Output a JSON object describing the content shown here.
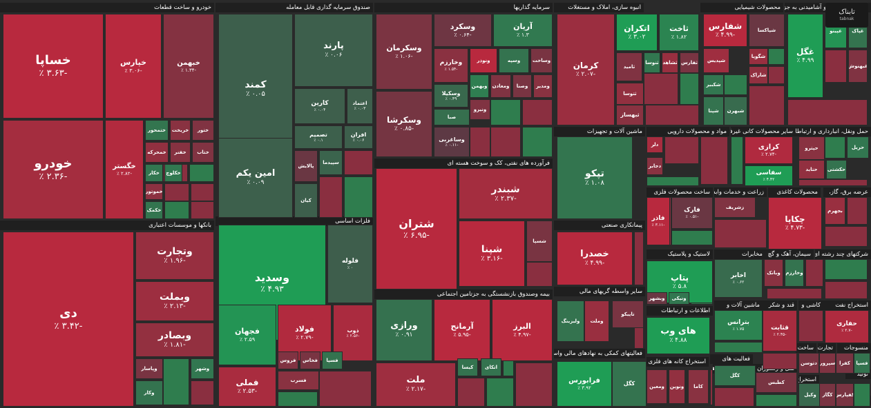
{
  "watermark": {
    "brand": "تابناک",
    "sub": "tabnak"
  },
  "colors": {
    "pos": "#1f9d55",
    "neg": "#b8293e",
    "neutral": "#4d3b45",
    "bg": "#2a2a2a"
  },
  "chart_data": {
    "type": "treemap",
    "sectors": [
      {
        "name": "خودرو و ساخت قطعات"
      },
      {
        "name": "صندوق سرمایه گذاری قابل معامله"
      },
      {
        "name": "سرمایه گذاریها"
      },
      {
        "name": "انبوه سازی، املاک و مستغلات"
      },
      {
        "name": "محصولات شیمیایی"
      },
      {
        "name": "محصولات غذایی و آشامیدنی به جز"
      },
      {
        "name": "بانکها و موسسات اعتباری"
      },
      {
        "name": "فرآورده های نفتی، کک و سوخت هسته ای"
      },
      {
        "name": "ماشین آلات و تجهیزات"
      },
      {
        "name": "مواد و محصولات دارویی"
      },
      {
        "name": "سایر محصولات کانی غیرفلزی"
      },
      {
        "name": "حمل ونقل، انبارداری و ارتباطات"
      },
      {
        "name": "فلزات اساسی"
      },
      {
        "name": "بیمه وصندوق بازنشستگی به جزتامین اجتماعی"
      },
      {
        "name": "پیمانکاری صنعتی"
      },
      {
        "name": "ساخت محصولات فلزی"
      },
      {
        "name": "زراعت و خدمات وابسته"
      },
      {
        "name": "محصولات کاغذی"
      },
      {
        "name": "عرضه برق، گاز،"
      },
      {
        "name": "لاستیک و پلاستیک"
      },
      {
        "name": "مخابرات"
      },
      {
        "name": "سیمان، آهک و گچ"
      },
      {
        "name": "شرکتهای چند رشته ای"
      },
      {
        "name": "سایر واسطه گریهای مالی"
      },
      {
        "name": "اطلاعات و ارتباطات"
      },
      {
        "name": "ماشین آلات و"
      },
      {
        "name": "قند و شکر"
      },
      {
        "name": "کاشی و"
      },
      {
        "name": "استخراج نفت"
      },
      {
        "name": "ساخت"
      },
      {
        "name": "منسوجات"
      },
      {
        "name": "تجارت"
      },
      {
        "name": "فعالیتهای کمکی به نهادهای مالی واسط"
      },
      {
        "name": "استخراج کانه های فلزی"
      },
      {
        "name": "فعالیت های"
      },
      {
        "name": "رایانه و فعالیت‌های"
      },
      {
        "name": "هتل و رستوران"
      },
      {
        "name": "استخراج"
      },
      {
        "name": "خرده"
      },
      {
        "name": "تولید"
      },
      {
        "name": "اسد"
      },
      {
        "name": "دباغ"
      },
      {
        "name": "محصر"
      }
    ],
    "tiles": [
      {
        "name": "خساپا",
        "change": "-۳.۶۳ ٪",
        "value": -3.63
      },
      {
        "name": "خپارس",
        "change": "-۳.۰۶ ٪",
        "value": -3.06
      },
      {
        "name": "خبهمن",
        "change": "-۱.۳۴ ٪",
        "value": -1.34
      },
      {
        "name": "خودرو",
        "change": "-۲.۳۶ ٪",
        "value": -2.36
      },
      {
        "name": "خگستر",
        "change": "-۲.۸۲ ٪",
        "value": -2.82
      },
      {
        "name": "ختمحور",
        "change": "",
        "value": 1.1
      },
      {
        "name": "خریخت",
        "change": "",
        "value": -1.5
      },
      {
        "name": "ختور",
        "change": "",
        "value": -1.2
      },
      {
        "name": "خمحرکه",
        "change": "",
        "value": -1.8
      },
      {
        "name": "خفنر",
        "change": "",
        "value": -1.4
      },
      {
        "name": "ختاب",
        "change": "",
        "value": -1.2
      },
      {
        "name": "خکار",
        "change": "",
        "value": 1.2
      },
      {
        "name": "خموتور",
        "change": "",
        "value": -1.6
      },
      {
        "name": "خکمک",
        "change": "",
        "value": 1.1
      },
      {
        "name": "خکلوچ",
        "change": "",
        "value": 1.3
      },
      {
        "name": "کمند",
        "change": "۰.۰۵ ٪",
        "value": 0.05
      },
      {
        "name": "پارند",
        "change": "۰.۰۶ ٪",
        "value": 0.06
      },
      {
        "name": "امین یکم",
        "change": "۰.۰۹ ٪",
        "value": 0.09
      },
      {
        "name": "کارین",
        "change": "۰.۰۴ ٪",
        "value": 0.04
      },
      {
        "name": "اعتماد",
        "change": "۰.۰۳ ٪",
        "value": 0.03
      },
      {
        "name": "تصمیم",
        "change": "۰.۱ ٪",
        "value": 0.1
      },
      {
        "name": "افران",
        "change": "۰.۰۶ ٪",
        "value": 0.06
      },
      {
        "name": "پالایش",
        "change": "",
        "value": -0.5
      },
      {
        "name": "سپیدما",
        "change": "",
        "value": 0.3
      },
      {
        "name": "کیان",
        "change": "",
        "value": 0.05
      },
      {
        "name": "وسکرمان",
        "change": "-۱.۰۶ ٪",
        "value": -1.06
      },
      {
        "name": "وسکرد",
        "change": "-۰.۶۴ ٪",
        "value": -0.64
      },
      {
        "name": "آریان",
        "change": "۱.۳ ٪",
        "value": 1.3
      },
      {
        "name": "وخارزم",
        "change": "-۱.۵۴ ٪",
        "value": -1.54
      },
      {
        "name": "ونوذر",
        "change": "",
        "value": -3.2
      },
      {
        "name": "وسپه",
        "change": "",
        "value": 1.0
      },
      {
        "name": "وساخت",
        "change": "",
        "value": -1.0
      },
      {
        "name": "وسکیلا",
        "change": "۰.۴۹ ٪",
        "value": 0.49
      },
      {
        "name": "وبهمن",
        "change": "",
        "value": 1.5
      },
      {
        "name": "ومعادن",
        "change": "",
        "value": -1.2
      },
      {
        "name": "وصنا",
        "change": "",
        "value": -1.0
      },
      {
        "name": "ومدیر",
        "change": "",
        "value": -1.5
      },
      {
        "name": "وسکرشا",
        "change": "-۰.۸۵ ٪",
        "value": -0.85
      },
      {
        "name": "صبا",
        "change": "",
        "value": 0.8
      },
      {
        "name": "ونیرو",
        "change": "",
        "value": -1.2
      },
      {
        "name": "وساغربی",
        "change": "-۰.۱۱ ٪",
        "value": -0.11
      },
      {
        "name": "کرمان",
        "change": "-۲.۰۷ ٪",
        "value": -2.07
      },
      {
        "name": "اتکران",
        "change": "۳.۰۲ ٪",
        "value": 3.02
      },
      {
        "name": "ثاخت",
        "change": "۱.۸۲ ٪",
        "value": 1.82
      },
      {
        "name": "ثامید",
        "change": "",
        "value": -1.2
      },
      {
        "name": "ثنوسا",
        "change": "",
        "value": 1.2
      },
      {
        "name": "ثشاهد",
        "change": "",
        "value": -2.0
      },
      {
        "name": "ثفارس",
        "change": "",
        "value": -1.0
      },
      {
        "name": "ثتوسا",
        "change": "",
        "value": -1.8
      },
      {
        "name": "ثبهساز",
        "change": "",
        "value": -1.5
      },
      {
        "name": "شفارس",
        "change": "-۴.۹۹ ٪",
        "value": -4.99
      },
      {
        "name": "شپاکسا",
        "change": "",
        "value": -0.5
      },
      {
        "name": "شگویا",
        "change": "",
        "value": -2.0
      },
      {
        "name": "شاراک",
        "change": "",
        "value": -1.8
      },
      {
        "name": "شپدیس",
        "change": "",
        "value": -2.2
      },
      {
        "name": "شکبیر",
        "change": "",
        "value": 1.2
      },
      {
        "name": "شپنا",
        "change": "",
        "value": 1.0
      },
      {
        "name": "شبهرن",
        "change": "",
        "value": 0.6
      },
      {
        "name": "غگل",
        "change": "۴.۹۹ ٪",
        "value": 4.99
      },
      {
        "name": "غپینو",
        "change": "",
        "value": 2.5
      },
      {
        "name": "غپاک",
        "change": "",
        "value": 1.0
      },
      {
        "name": "غبهنوش",
        "change": "",
        "value": -1.2
      },
      {
        "name": "دی",
        "change": "-۳.۴۲ ٪",
        "value": -3.42
      },
      {
        "name": "وتجارت",
        "change": "-۱.۹۶ ٪",
        "value": -1.96
      },
      {
        "name": "وبملت",
        "change": "-۲.۱۳ ٪",
        "value": -2.13
      },
      {
        "name": "وبصادر",
        "change": "-۱.۸۱ ٪",
        "value": -1.81
      },
      {
        "name": "وپاسار",
        "change": "",
        "value": -1.0
      },
      {
        "name": "وکار",
        "change": "",
        "value": 1.0
      },
      {
        "name": "وشهر",
        "change": "",
        "value": 1.2
      },
      {
        "name": "شبندر",
        "change": "-۲.۳۷ ٪",
        "value": -2.37
      },
      {
        "name": "شتران",
        "change": "-۶.۹۵ ٪",
        "value": -6.95
      },
      {
        "name": "شپنا",
        "change": "-۳.۱۶ ٪",
        "value": -3.16
      },
      {
        "name": "شسپا",
        "change": "",
        "value": -1.0
      },
      {
        "name": "تپکو",
        "change": "۱.۰۸ ٪",
        "value": 1.08
      },
      {
        "name": "دلر",
        "change": "",
        "value": -2.5
      },
      {
        "name": "دجابر",
        "change": "",
        "value": -1.5
      },
      {
        "name": "کرازی",
        "change": "-۲.۷۴ ٪",
        "value": -2.74
      },
      {
        "name": "سفاسی",
        "change": "۴.۴۲ ٪",
        "value": 4.42
      },
      {
        "name": "حپترو",
        "change": "",
        "value": -1.5
      },
      {
        "name": "حتاید",
        "change": "",
        "value": -1.8
      },
      {
        "name": "حریل",
        "change": "",
        "value": 1.2
      },
      {
        "name": "حکشتی",
        "change": "",
        "value": 1.0
      },
      {
        "name": "وسدید",
        "change": "۴.۹۳ ٪",
        "value": 4.93
      },
      {
        "name": "فلوله",
        "change": "۰ ٪",
        "value": 0
      },
      {
        "name": "فجهان",
        "change": "۲.۵۹ ٪",
        "value": 2.59
      },
      {
        "name": "فولاد",
        "change": "-۲.۷۹ ٪",
        "value": -2.79
      },
      {
        "name": "ذوب",
        "change": "-۲.۵۶ ٪",
        "value": -2.56
      },
      {
        "name": "فملی",
        "change": "-۲.۵۳ ٪",
        "value": -2.53
      },
      {
        "name": "فروس",
        "change": "",
        "value": -1.2
      },
      {
        "name": "فخاس",
        "change": "",
        "value": -1.0
      },
      {
        "name": "فسپا",
        "change": "",
        "value": 1.0
      },
      {
        "name": "فسرب",
        "change": "",
        "value": -1.5
      },
      {
        "name": "ورازی",
        "change": "۰.۹۱ ٪",
        "value": 0.91
      },
      {
        "name": "آرمانح",
        "change": "-۵.۹۵ ٪",
        "value": -5.95
      },
      {
        "name": "البرز",
        "change": "-۴.۹۷ ٪",
        "value": -4.97
      },
      {
        "name": "ملت",
        "change": "-۲.۱۷ ٪",
        "value": -2.17
      },
      {
        "name": "اتکای",
        "change": "",
        "value": 1.0
      },
      {
        "name": "کیسا",
        "change": "",
        "value": 1.0
      },
      {
        "name": "خصدرا",
        "change": "-۴.۹۹ ٪",
        "value": -4.99
      },
      {
        "name": "فاذر",
        "change": "-۳.۱۱ ٪",
        "value": -3.11
      },
      {
        "name": "فارک",
        "change": "-۰.۵۱ ٪",
        "value": -0.51
      },
      {
        "name": "چکاپا",
        "change": "-۴.۷۳ ٪",
        "value": -4.73
      },
      {
        "name": "بجهرم",
        "change": "",
        "value": -2.0
      },
      {
        "name": "زشریف",
        "change": "",
        "value": -1.2
      },
      {
        "name": "پتاپ",
        "change": "۵.۸ ٪",
        "value": 5.8
      },
      {
        "name": "اخابر",
        "change": "۰.۶۲ ٪",
        "value": 0.62
      },
      {
        "name": "وبانک",
        "change": "",
        "value": -1.5
      },
      {
        "name": "وخارزم",
        "change": "",
        "value": 1.0
      },
      {
        "name": "بترانس",
        "change": "۱.۷۵ ٪",
        "value": 1.75
      },
      {
        "name": "قثابت",
        "change": "-۲.۴۵ ٪",
        "value": -2.45
      },
      {
        "name": "حفاری",
        "change": "-۲.۷ ٪",
        "value": -2.7
      },
      {
        "name": "های وب",
        "change": "۴.۸۸ ٪",
        "value": 4.88
      },
      {
        "name": "فرابورس",
        "change": "۳.۹۲ ٪",
        "value": 3.92
      },
      {
        "name": "کگل",
        "change": "",
        "value": 1.0
      },
      {
        "name": "تاپیکو",
        "change": "",
        "value": -1.0
      },
      {
        "name": "ولیزینگ",
        "change": "",
        "value": 1.0
      },
      {
        "name": "وملت",
        "change": "",
        "value": -2.0
      },
      {
        "name": "وبشهر",
        "change": "",
        "value": -0.5
      },
      {
        "name": "ونیکی",
        "change": "",
        "value": 1.2
      },
      {
        "name": "ومعین",
        "change": "",
        "value": -1.5
      },
      {
        "name": "ونوین",
        "change": "",
        "value": -1.8
      },
      {
        "name": "کاما",
        "change": "",
        "value": -1.5
      },
      {
        "name": "کگل",
        "change": "",
        "value": 1.0
      },
      {
        "name": "کطبس",
        "change": "",
        "value": -1.0
      },
      {
        "name": "دتوسن",
        "change": "",
        "value": -1.0
      },
      {
        "name": "سپرور",
        "change": "",
        "value": -1.2
      },
      {
        "name": "کفرا",
        "change": "",
        "value": -1.0
      },
      {
        "name": "فسپا",
        "change": "",
        "value": 1.0
      },
      {
        "name": "وکیل",
        "change": "",
        "value": 0.5
      },
      {
        "name": "کگاز",
        "change": "",
        "value": -1.0
      },
      {
        "name": "کفپارس",
        "change": "",
        "value": -1.0
      },
      {
        "name": "سفار",
        "change": "",
        "value": -1.5
      },
      {
        "name": "سخاش",
        "change": "",
        "value": -1.5
      },
      {
        "name": "کهمدا",
        "change": "",
        "value": -2.0
      },
      {
        "name": "کسرام",
        "change": "",
        "value": -1.0
      }
    ]
  }
}
